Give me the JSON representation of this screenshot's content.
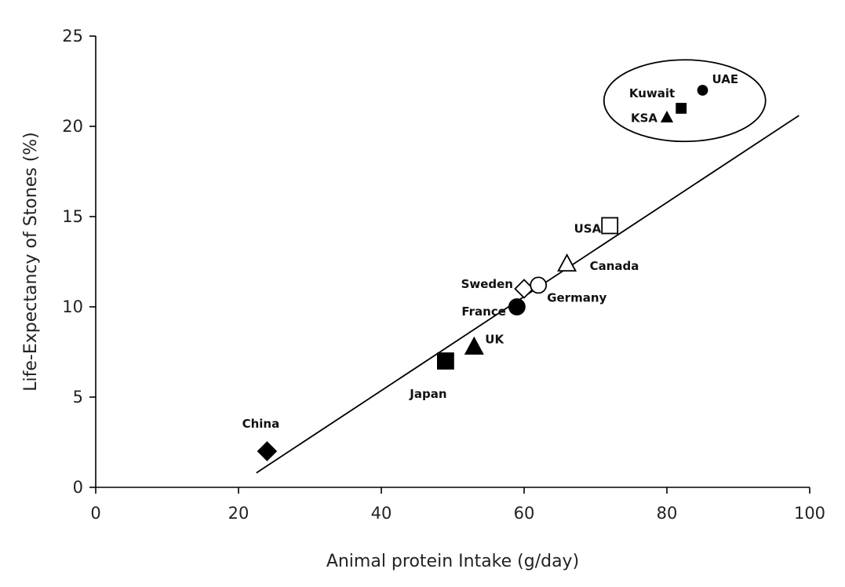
{
  "chart_data": {
    "type": "scatter",
    "title": "",
    "xlabel": "Animal protein Intake (g/day)",
    "ylabel": "Life-Expectancy of Stones (%)",
    "xlim": [
      0,
      100
    ],
    "ylim": [
      0,
      25
    ],
    "xticks": [
      0,
      20,
      40,
      60,
      80,
      100
    ],
    "yticks": [
      0,
      5,
      10,
      15,
      20,
      25
    ],
    "grid": false,
    "points": [
      {
        "label": "China",
        "x": 24,
        "y": 2.0,
        "marker": "diamond",
        "filled": true
      },
      {
        "label": "Japan",
        "x": 49,
        "y": 7.0,
        "marker": "square",
        "filled": true
      },
      {
        "label": "UK",
        "x": 53,
        "y": 7.8,
        "marker": "triangle",
        "filled": true
      },
      {
        "label": "France",
        "x": 59,
        "y": 10.0,
        "marker": "circle",
        "filled": true
      },
      {
        "label": "Sweden",
        "x": 60,
        "y": 11.0,
        "marker": "diamond",
        "filled": false
      },
      {
        "label": "Germany",
        "x": 62,
        "y": 11.2,
        "marker": "circle",
        "filled": false
      },
      {
        "label": "Canada",
        "x": 66,
        "y": 12.4,
        "marker": "triangle",
        "filled": false
      },
      {
        "label": "USA",
        "x": 72,
        "y": 14.5,
        "marker": "square",
        "filled": false
      },
      {
        "label": "KSA",
        "x": 80,
        "y": 20.5,
        "marker": "triangle",
        "filled": true
      },
      {
        "label": "Kuwait",
        "x": 82,
        "y": 21.0,
        "marker": "square",
        "filled": true
      },
      {
        "label": "UAE",
        "x": 85,
        "y": 22.0,
        "marker": "circle",
        "filled": true
      }
    ],
    "trendline": {
      "x": [
        22.5,
        98.5
      ],
      "y": [
        0.8,
        20.6
      ]
    },
    "highlight_ellipse": {
      "group": [
        "KSA",
        "Kuwait",
        "UAE"
      ]
    }
  }
}
